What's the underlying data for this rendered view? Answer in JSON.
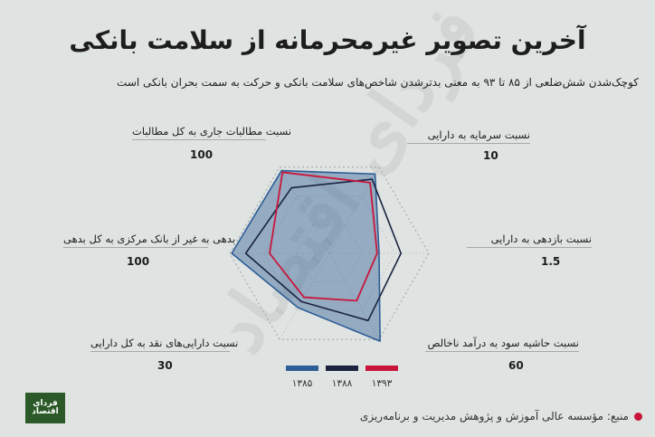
{
  "title": "آخرین تصویر غیرمحرمانه از سلامت بانکی",
  "subtitle": "کوچک‌شدن شش‌ضلعی از ۸۵ تا ۹۳ به معنی بدترشدن شاخص‌های سلامت بانکی و حرکت به سمت بحران بانکی است",
  "watermark": "فردای اقتصاد",
  "logo_text": "فردای اقتصاد",
  "source": "منبع: مؤسسه عالی آموزش و پژوهش مدیریت و برنامه‌ریزی",
  "colors": {
    "background": "#dfe3e2",
    "s1385": "#2d5e96",
    "s1388": "#1a2440",
    "s1393": "#c8163b",
    "source_dot": "#c8163b"
  },
  "chart_data": {
    "type": "radar",
    "axes": [
      {
        "label": "نسبت سرمایه به دارایی",
        "max": "10"
      },
      {
        "label": "نسبت بازدهی به دارایی",
        "max": "1.5"
      },
      {
        "label": "نسبت حاشیه سود به درآمد ناخالص",
        "max": "60"
      },
      {
        "label": "نسبت دارایی‌های نقد به کل دارایی",
        "max": "30"
      },
      {
        "label": "بدهی به غیر از بانک مرکزی به کل بدهی",
        "max": "100"
      },
      {
        "label": "نسبت مطالبات جاری به کل مطالبات",
        "max": "100"
      }
    ],
    "series": [
      {
        "name": "۱۳۸۵",
        "values": [
          0.92,
          0.5,
          1.02,
          0.63,
          0.98,
          0.96
        ]
      },
      {
        "name": "۱۳۸۸",
        "values": [
          0.86,
          0.72,
          0.78,
          0.56,
          0.84,
          0.76
        ]
      },
      {
        "name": "۱۳۹۳",
        "values": [
          0.82,
          0.48,
          0.55,
          0.51,
          0.6,
          0.94
        ]
      }
    ],
    "grid": true,
    "legend": "bottom-center"
  }
}
